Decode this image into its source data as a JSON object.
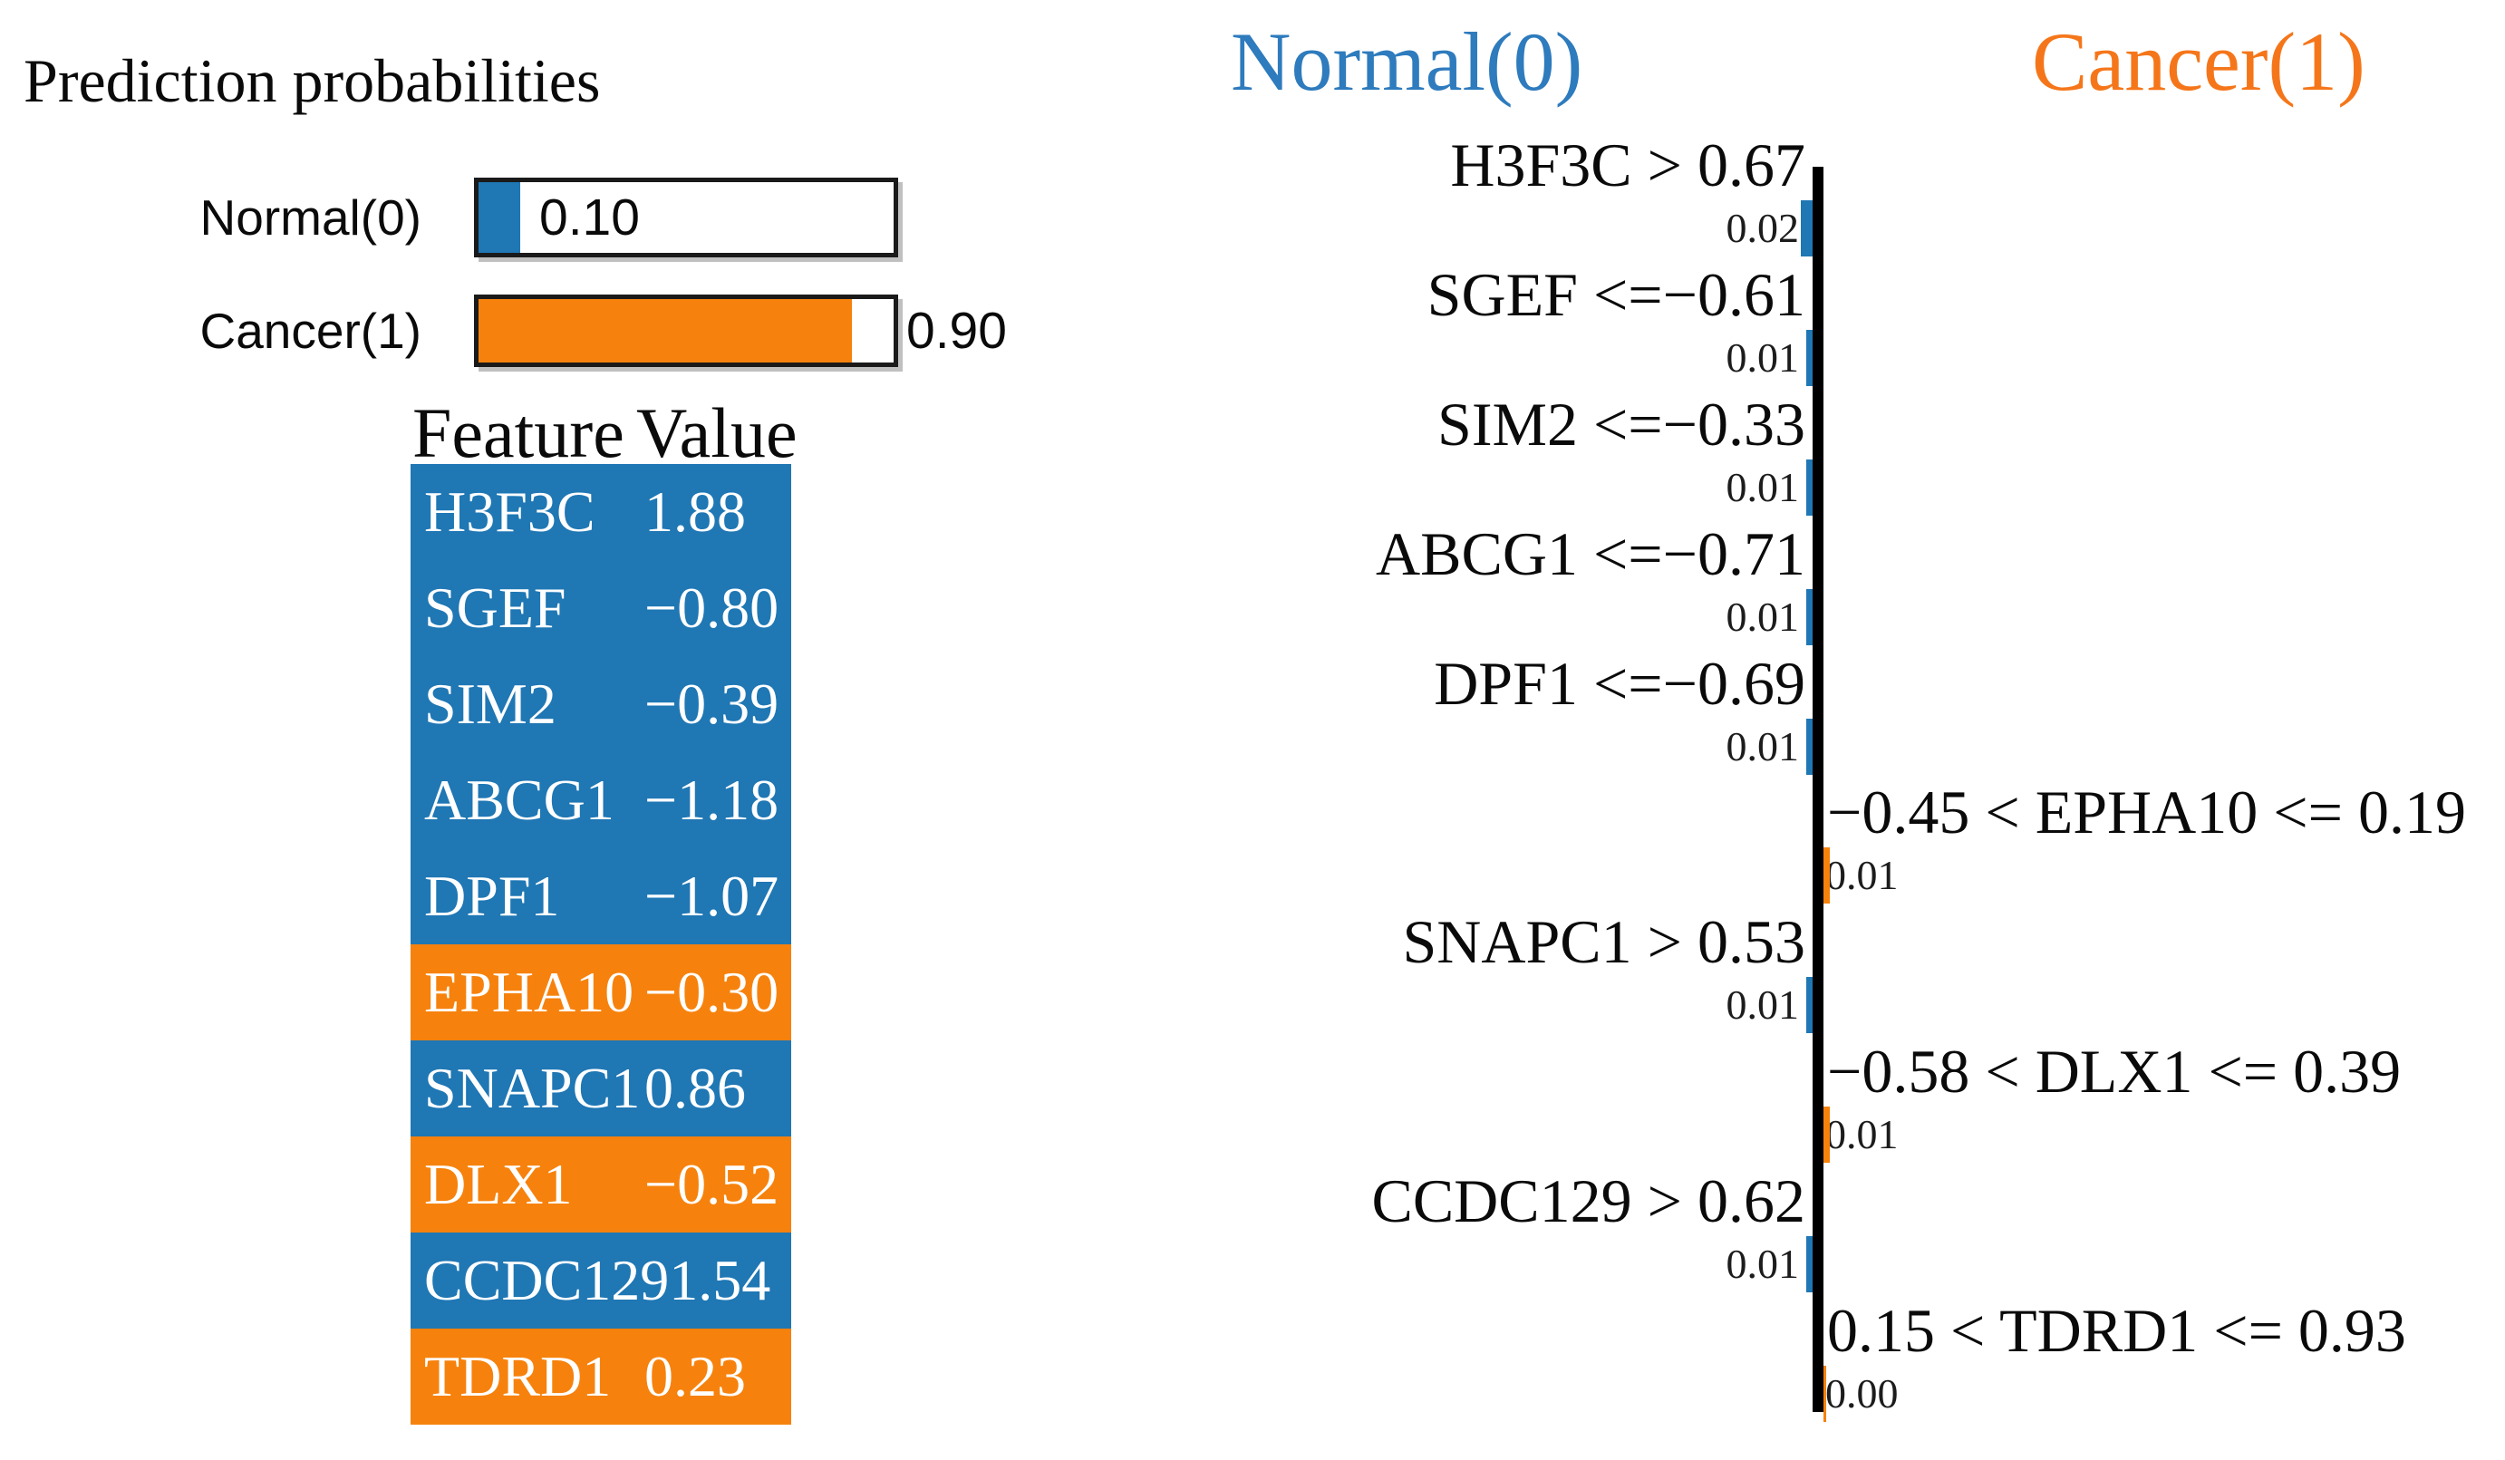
{
  "title": "Prediction probabilities",
  "colors": {
    "normal_blue": "#1f77b4",
    "cancer_orange": "#f6820d",
    "header_blue": "#2e7bbd",
    "header_orange": "#f5761a",
    "axis_black": "#000000"
  },
  "probabilities": {
    "items": [
      {
        "label": "Normal(0)",
        "value": "0.10",
        "fraction": 0.1,
        "class": "normal"
      },
      {
        "label": "Cancer(1)",
        "value": "0.90",
        "fraction": 0.9,
        "class": "cancer"
      }
    ]
  },
  "feature_table": {
    "headers": {
      "feature": "Feature",
      "value": "Value"
    },
    "rows": [
      {
        "feature": "H3F3C",
        "value": "1.88",
        "class": "normal"
      },
      {
        "feature": "SGEF",
        "value": "−0.80",
        "class": "normal"
      },
      {
        "feature": "SIM2",
        "value": "−0.39",
        "class": "normal"
      },
      {
        "feature": "ABCG1",
        "value": "−1.18",
        "class": "normal"
      },
      {
        "feature": "DPF1",
        "value": "−1.07",
        "class": "normal"
      },
      {
        "feature": "EPHA10",
        "value": "−0.30",
        "class": "cancer"
      },
      {
        "feature": "SNAPC1",
        "value": "0.86",
        "class": "normal"
      },
      {
        "feature": "DLX1",
        "value": "−0.52",
        "class": "cancer"
      },
      {
        "feature": "CCDC129",
        "value": "1.54",
        "class": "normal"
      },
      {
        "feature": "TDRD1",
        "value": "0.23",
        "class": "cancer"
      }
    ]
  },
  "explanation_chart": {
    "left_header": "Normal(0)",
    "right_header": "Cancer(1)",
    "rows": [
      {
        "condition": "H3F3C > 0.67",
        "weight": "0.02",
        "weight_value": 0.02,
        "side": "normal"
      },
      {
        "condition": "SGEF <=−0.61",
        "weight": "0.01",
        "weight_value": 0.01,
        "side": "normal"
      },
      {
        "condition": "SIM2 <=−0.33",
        "weight": "0.01",
        "weight_value": 0.01,
        "side": "normal"
      },
      {
        "condition": "ABCG1 <=−0.71",
        "weight": "0.01",
        "weight_value": 0.01,
        "side": "normal"
      },
      {
        "condition": "DPF1 <=−0.69",
        "weight": "0.01",
        "weight_value": 0.01,
        "side": "normal"
      },
      {
        "condition": "−0.45 < EPHA10 <= 0.19",
        "weight": "0.01",
        "weight_value": 0.01,
        "side": "cancer"
      },
      {
        "condition": "SNAPC1 > 0.53",
        "weight": "0.01",
        "weight_value": 0.01,
        "side": "normal"
      },
      {
        "condition": "−0.58 < DLX1 <= 0.39",
        "weight": "0.01",
        "weight_value": 0.01,
        "side": "cancer"
      },
      {
        "condition": "CCDC129 > 0.62",
        "weight": "0.01",
        "weight_value": 0.01,
        "side": "normal"
      },
      {
        "condition": "0.15 < TDRD1 <= 0.93",
        "weight": "0.00",
        "weight_value": 0.0,
        "side": "cancer"
      }
    ]
  },
  "chart_data": [
    {
      "type": "bar",
      "title": "Prediction probabilities",
      "categories": [
        "Normal(0)",
        "Cancer(1)"
      ],
      "values": [
        0.1,
        0.9
      ],
      "xlabel": "",
      "ylabel": "",
      "xlim": [
        0,
        1
      ],
      "orientation": "horizontal",
      "colors": [
        "#1f77b4",
        "#f6820d"
      ],
      "grid": false
    },
    {
      "type": "bar",
      "title": "LIME local explanation (left bars support Normal(0), right bars support Cancer(1))",
      "categories": [
        "H3F3C > 0.67",
        "SGEF <=−0.61",
        "SIM2 <=−0.33",
        "ABCG1 <=−0.71",
        "DPF1 <=−0.69",
        "−0.45 < EPHA10 <= 0.19",
        "SNAPC1 > 0.53",
        "−0.58 < DLX1 <= 0.39",
        "CCDC129 > 0.62",
        "0.15 < TDRD1 <= 0.93"
      ],
      "values": [
        -0.02,
        -0.01,
        -0.01,
        -0.01,
        -0.01,
        0.01,
        -0.01,
        0.01,
        -0.01,
        0.0
      ],
      "legend": [
        "Normal(0)",
        "Cancer(1)"
      ],
      "legend_position": "top",
      "xlabel": "",
      "ylabel": "",
      "orientation": "horizontal",
      "grid": false
    }
  ]
}
